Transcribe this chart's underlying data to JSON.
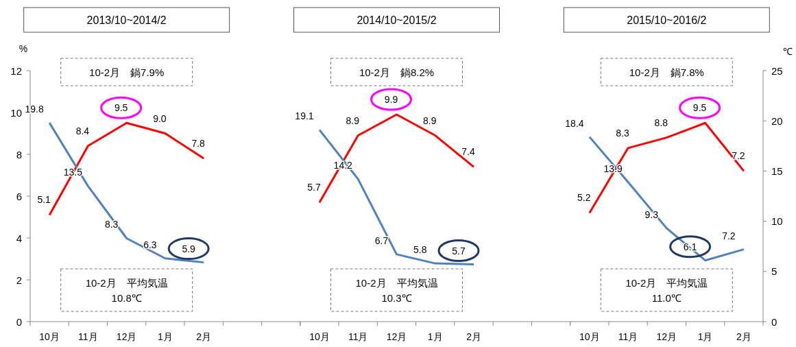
{
  "chart_data": [
    {
      "type": "line",
      "title": "2013/10~2014/2",
      "ylabel": "%",
      "categories": [
        "10月",
        "11月",
        "12月",
        "1月",
        "2月"
      ],
      "ylim": [
        0,
        12
      ],
      "yticks": [
        0,
        2,
        4,
        6,
        8,
        10,
        12
      ],
      "y2lim": [
        0,
        25
      ],
      "series": [
        {
          "color": "#ff0000",
          "values": [
            5.1,
            8.4,
            9.5,
            9.0,
            7.8
          ],
          "value_labels": [
            "5.1",
            "8.4",
            "9.5",
            "9.0",
            "7.8"
          ]
        },
        {
          "color": "#4f81bd",
          "axis": "y2",
          "values": [
            19.8,
            13.5,
            8.3,
            6.3,
            5.9
          ],
          "value_labels": [
            "19.8",
            "13.5",
            "8.3",
            "6.3",
            "5.9"
          ]
        }
      ],
      "annotations": [
        "10-2月　鍋7.9%",
        "10-2月　平均気温\n10.8℃"
      ]
    },
    {
      "type": "line",
      "title": "2014/10~2015/2",
      "categories": [
        "10月",
        "11月",
        "12月",
        "1月",
        "2月"
      ],
      "ylim": [
        0,
        12
      ],
      "y2lim": [
        0,
        25
      ],
      "tick_labels": "x",
      "series": [
        {
          "color": "#ff0000",
          "values": [
            5.7,
            8.9,
            9.9,
            8.9,
            7.4
          ],
          "value_labels": [
            "5.7",
            "8.9",
            "9.9",
            "8.9",
            "7.4"
          ]
        },
        {
          "color": "#4f81bd",
          "axis": "y2",
          "values": [
            19.1,
            14.2,
            6.7,
            5.8,
            5.7
          ],
          "value_labels": [
            "19.1",
            "14.2",
            "6.7",
            "5.8",
            "5.7"
          ]
        }
      ],
      "annotations": [
        "10-2月　鍋8.2%",
        "10-2月　平均気温\n10.3℃"
      ]
    },
    {
      "type": "line",
      "title": "2015/10~2016/2",
      "y2label": "℃",
      "categories": [
        "10月",
        "11月",
        "12月",
        "1月",
        "2月"
      ],
      "ylim": [
        0,
        12
      ],
      "y2lim": [
        0,
        25
      ],
      "y2ticks": [
        0,
        5,
        10,
        15,
        20,
        25
      ],
      "series": [
        {
          "color": "#ff0000",
          "values": [
            5.2,
            8.3,
            8.8,
            9.5,
            7.2
          ],
          "value_labels": [
            "5.2",
            "8.3",
            "8.8",
            "9.5",
            "7.2"
          ]
        },
        {
          "color": "#4f81bd",
          "axis": "y2",
          "values": [
            18.4,
            13.9,
            9.3,
            6.1,
            7.2
          ],
          "value_labels": [
            "18.4",
            "13.9",
            "9.3",
            "6.1",
            "7.2"
          ]
        }
      ],
      "annotations": [
        "10-2月　鍋7.8%",
        "10-2月　平均気温\n11.0℃"
      ]
    }
  ]
}
